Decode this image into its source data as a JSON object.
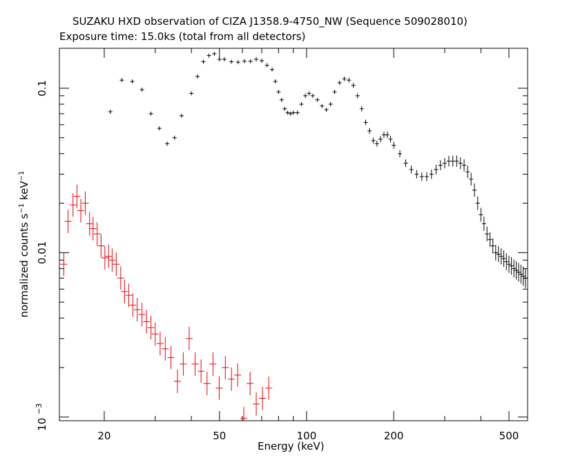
{
  "chart_data": {
    "type": "scatter",
    "title": "SUZAKU HXD observation of CIZA J1358.9-4750_NW (Sequence 509028010)",
    "subtitle": "Exposure time: 15.0ks (total from all detectors)",
    "xlabel": "Energy (keV)",
    "ylabel": {
      "a": "normalized counts s",
      "b": "−1",
      "c": " keV",
      "d": "−1"
    },
    "xscale": "log",
    "yscale": "log",
    "xlim": [
      14,
      580
    ],
    "ylim": [
      0.00095,
      0.175
    ],
    "x_ticks": [
      "20",
      "50",
      "100",
      "200",
      "500"
    ],
    "y_ticks": [
      "0.1",
      "0.01"
    ],
    "y_tick_1e-3": {
      "base": "10",
      "exp": "−3"
    },
    "series": [
      {
        "color": "#000000",
        "points": [
          [
            21,
            0.072
          ],
          [
            23,
            0.112
          ],
          [
            25,
            0.11
          ],
          [
            27,
            0.098
          ],
          [
            29,
            0.07
          ],
          [
            31,
            0.057
          ],
          [
            33,
            0.046
          ],
          [
            35,
            0.05
          ],
          [
            37,
            0.068
          ],
          [
            40,
            0.093
          ],
          [
            42,
            0.118
          ],
          [
            44,
            0.145
          ],
          [
            46,
            0.158
          ],
          [
            48,
            0.162
          ],
          [
            50,
            0.15
          ],
          [
            52,
            0.15
          ],
          [
            55,
            0.145
          ],
          [
            58,
            0.144
          ],
          [
            61,
            0.146
          ],
          [
            64,
            0.146
          ],
          [
            67,
            0.15
          ],
          [
            70,
            0.147
          ],
          [
            73,
            0.138
          ],
          [
            76,
            0.13
          ],
          [
            78,
            0.11
          ],
          [
            80,
            0.095
          ],
          [
            82,
            0.085
          ],
          [
            84,
            0.075
          ],
          [
            86,
            0.071
          ],
          [
            88,
            0.07
          ],
          [
            90,
            0.071
          ],
          [
            93,
            0.071
          ],
          [
            96,
            0.08
          ],
          [
            99,
            0.09
          ],
          [
            102,
            0.093
          ],
          [
            105,
            0.09
          ],
          [
            109,
            0.085
          ],
          [
            113,
            0.078
          ],
          [
            117,
            0.074
          ],
          [
            121,
            0.08
          ],
          [
            125,
            0.095
          ],
          [
            130,
            0.108
          ],
          [
            135,
            0.114
          ],
          [
            140,
            0.112
          ],
          [
            145,
            0.104
          ],
          [
            150,
            0.09
          ],
          [
            155,
            0.075
          ],
          [
            160,
            0.062
          ],
          [
            165,
            0.055
          ],
          [
            170,
            0.048
          ],
          [
            175,
            0.046
          ],
          [
            180,
            0.049
          ],
          [
            185,
            0.052
          ],
          [
            190,
            0.052
          ],
          [
            195,
            0.049
          ],
          [
            200,
            0.045
          ],
          [
            210,
            0.04
          ],
          [
            220,
            0.035
          ],
          [
            230,
            0.032
          ],
          [
            240,
            0.03
          ],
          [
            250,
            0.029
          ],
          [
            260,
            0.029
          ],
          [
            270,
            0.03
          ],
          [
            280,
            0.032
          ],
          [
            290,
            0.034
          ],
          [
            300,
            0.035
          ],
          [
            310,
            0.036
          ],
          [
            320,
            0.036
          ],
          [
            330,
            0.036
          ],
          [
            340,
            0.035
          ],
          [
            350,
            0.034
          ],
          [
            360,
            0.031
          ],
          [
            370,
            0.028
          ],
          [
            380,
            0.024
          ],
          [
            390,
            0.02
          ],
          [
            400,
            0.017
          ],
          [
            410,
            0.015
          ],
          [
            420,
            0.013
          ],
          [
            430,
            0.012
          ],
          [
            440,
            0.011
          ],
          [
            450,
            0.01
          ],
          [
            460,
            0.0098
          ],
          [
            470,
            0.0095
          ],
          [
            480,
            0.0092
          ],
          [
            490,
            0.0088
          ],
          [
            500,
            0.0085
          ],
          [
            510,
            0.0083
          ],
          [
            520,
            0.008
          ],
          [
            530,
            0.0078
          ],
          [
            540,
            0.0076
          ],
          [
            550,
            0.0074
          ],
          [
            560,
            0.0072
          ],
          [
            570,
            0.007
          ]
        ]
      },
      {
        "color": "#e8000b",
        "points": [
          [
            14.5,
            0.0085
          ],
          [
            15,
            0.0155
          ],
          [
            15.6,
            0.0195
          ],
          [
            16.1,
            0.022
          ],
          [
            16.6,
            0.018
          ],
          [
            17.2,
            0.02
          ],
          [
            17.8,
            0.015
          ],
          [
            18.3,
            0.014
          ],
          [
            18.9,
            0.013
          ],
          [
            19.5,
            0.011
          ],
          [
            20.1,
            0.0093
          ],
          [
            20.7,
            0.0095
          ],
          [
            21.3,
            0.009
          ],
          [
            22.0,
            0.0085
          ],
          [
            22.8,
            0.007
          ],
          [
            23.5,
            0.0058
          ],
          [
            24.3,
            0.0055
          ],
          [
            25.1,
            0.0048
          ],
          [
            26.0,
            0.0045
          ],
          [
            27.0,
            0.0042
          ],
          [
            28.0,
            0.0038
          ],
          [
            29.0,
            0.0035
          ],
          [
            30.0,
            0.0032
          ],
          [
            31.2,
            0.0028
          ],
          [
            32.5,
            0.0026
          ],
          [
            34.0,
            0.0023
          ],
          [
            35.8,
            0.00165
          ],
          [
            37.5,
            0.0021
          ],
          [
            39.3,
            0.003
          ],
          [
            41.2,
            0.0021
          ],
          [
            43.2,
            0.0019
          ],
          [
            45.3,
            0.0016
          ],
          [
            47.5,
            0.0021
          ],
          [
            49.9,
            0.0015
          ],
          [
            52.4,
            0.002
          ],
          [
            55.0,
            0.0017
          ],
          [
            57.8,
            0.0018
          ],
          [
            60.7,
            0.00098
          ],
          [
            63.8,
            0.0016
          ],
          [
            67.0,
            0.0012
          ],
          [
            70.4,
            0.0013
          ],
          [
            74.0,
            0.0015
          ]
        ]
      }
    ]
  }
}
